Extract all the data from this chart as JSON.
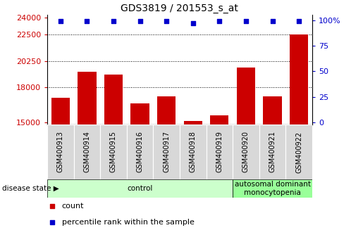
{
  "title": "GDS3819 / 201553_s_at",
  "samples": [
    "GSM400913",
    "GSM400914",
    "GSM400915",
    "GSM400916",
    "GSM400917",
    "GSM400918",
    "GSM400919",
    "GSM400920",
    "GSM400921",
    "GSM400922"
  ],
  "counts": [
    17100,
    19350,
    19100,
    16600,
    17200,
    15100,
    15600,
    19700,
    17200,
    22500
  ],
  "percentiles": [
    99,
    99,
    99,
    99,
    99,
    97,
    99,
    99,
    99,
    99
  ],
  "ylim_left": [
    14800,
    24200
  ],
  "ylim_right": [
    -2,
    105
  ],
  "yticks_left": [
    15000,
    18000,
    20250,
    22500,
    24000
  ],
  "yticks_left_labels": [
    "15000",
    "18000",
    "20250",
    "22500",
    "24000"
  ],
  "yticks_right": [
    0,
    25,
    50,
    75,
    100
  ],
  "yticks_right_labels": [
    "0",
    "25",
    "50",
    "75",
    "100%"
  ],
  "bar_color": "#cc0000",
  "dot_color": "#0000cc",
  "bg_color": "#ffffff",
  "xlabels_bg": "#d8d8d8",
  "disease_groups": [
    {
      "label": "control",
      "start": 0,
      "end": 7,
      "color": "#ccffcc"
    },
    {
      "label": "autosomal dominant\nmonocytopenia",
      "start": 7,
      "end": 10,
      "color": "#99ff99"
    }
  ],
  "legend_items": [
    {
      "color": "#cc0000",
      "label": "count"
    },
    {
      "color": "#0000cc",
      "label": "percentile rank within the sample"
    }
  ],
  "n_control": 7,
  "n_total": 10
}
